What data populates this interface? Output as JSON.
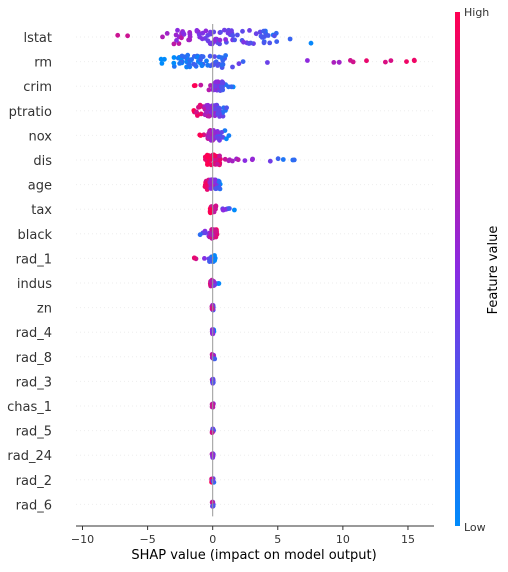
{
  "chart_data": {
    "type": "scatter",
    "subtype": "shap-beeswarm-summary",
    "xlabel": "SHAP value (impact on model output)",
    "x_ticks": [
      -10,
      -5,
      0,
      5,
      10,
      15
    ],
    "x_range": [
      -10.5,
      17
    ],
    "zero_line": 0,
    "colorbar": {
      "label": "Feature value",
      "high_label": "High",
      "low_label": "Low",
      "high_color": "#ff0052",
      "mid_color": "#8a2be2",
      "low_color": "#008bfb"
    },
    "features": [
      {
        "name": "lstat",
        "range": [
          -9.8,
          8.5
        ],
        "core": [
          -3,
          5
        ],
        "low_side": "positive",
        "density": 90
      },
      {
        "name": "rm",
        "range": [
          -4.0,
          15.8
        ],
        "core": [
          -3,
          1
        ],
        "low_side": "negative",
        "density": 80
      },
      {
        "name": "crim",
        "range": [
          -1.5,
          1.8
        ],
        "core": [
          0,
          0.8
        ],
        "low_side": "positive",
        "density": 45
      },
      {
        "name": "ptratio",
        "range": [
          -1.5,
          1.6
        ],
        "core": [
          -0.6,
          0.6
        ],
        "low_side": "positive",
        "density": 70
      },
      {
        "name": "nox",
        "range": [
          -1.0,
          1.4
        ],
        "core": [
          -0.4,
          0.6
        ],
        "low_side": "positive",
        "density": 55
      },
      {
        "name": "dis",
        "range": [
          -0.8,
          7.2
        ],
        "core": [
          -0.5,
          0.6
        ],
        "low_side": "positive",
        "density": 55
      },
      {
        "name": "age",
        "range": [
          -0.6,
          0.7
        ],
        "core": [
          -0.5,
          0.5
        ],
        "low_side": "positive",
        "density": 55
      },
      {
        "name": "tax",
        "range": [
          -0.3,
          1.7
        ],
        "core": [
          -0.2,
          0.3
        ],
        "low_side": "positive",
        "density": 30
      },
      {
        "name": "black",
        "range": [
          -1.3,
          0.4
        ],
        "core": [
          -0.3,
          0.3
        ],
        "low_side": "negative",
        "density": 45
      },
      {
        "name": "rad_1",
        "range": [
          -1.5,
          0.2
        ],
        "core": [
          -0.1,
          0.2
        ],
        "low_side": "positive",
        "density": 25
      },
      {
        "name": "indus",
        "range": [
          -0.3,
          0.5
        ],
        "core": [
          -0.2,
          0.2
        ],
        "low_side": "positive",
        "density": 25
      },
      {
        "name": "zn",
        "range": [
          -0.1,
          0.1
        ],
        "core": [
          -0.05,
          0.05
        ],
        "low_side": "positive",
        "density": 12
      },
      {
        "name": "rad_4",
        "range": [
          -0.1,
          0.1
        ],
        "core": [
          -0.05,
          0.05
        ],
        "low_side": "positive",
        "density": 12
      },
      {
        "name": "rad_8",
        "range": [
          -0.1,
          0.2
        ],
        "core": [
          -0.05,
          0.1
        ],
        "low_side": "positive",
        "density": 12
      },
      {
        "name": "rad_3",
        "range": [
          -0.1,
          0.1
        ],
        "core": [
          -0.05,
          0.05
        ],
        "low_side": "positive",
        "density": 10
      },
      {
        "name": "chas_1",
        "range": [
          -0.1,
          0.2
        ],
        "core": [
          -0.05,
          0.05
        ],
        "low_side": "positive",
        "density": 10
      },
      {
        "name": "rad_5",
        "range": [
          -0.1,
          0.1
        ],
        "core": [
          -0.05,
          0.05
        ],
        "low_side": "positive",
        "density": 10
      },
      {
        "name": "rad_24",
        "range": [
          -0.1,
          0.1
        ],
        "core": [
          -0.05,
          0.05
        ],
        "low_side": "positive",
        "density": 10
      },
      {
        "name": "rad_2",
        "range": [
          -0.1,
          0.1
        ],
        "core": [
          -0.05,
          0.05
        ],
        "low_side": "positive",
        "density": 10
      },
      {
        "name": "rad_6",
        "range": [
          -0.1,
          0.1
        ],
        "core": [
          -0.05,
          0.05
        ],
        "low_side": "positive",
        "density": 10
      }
    ]
  }
}
